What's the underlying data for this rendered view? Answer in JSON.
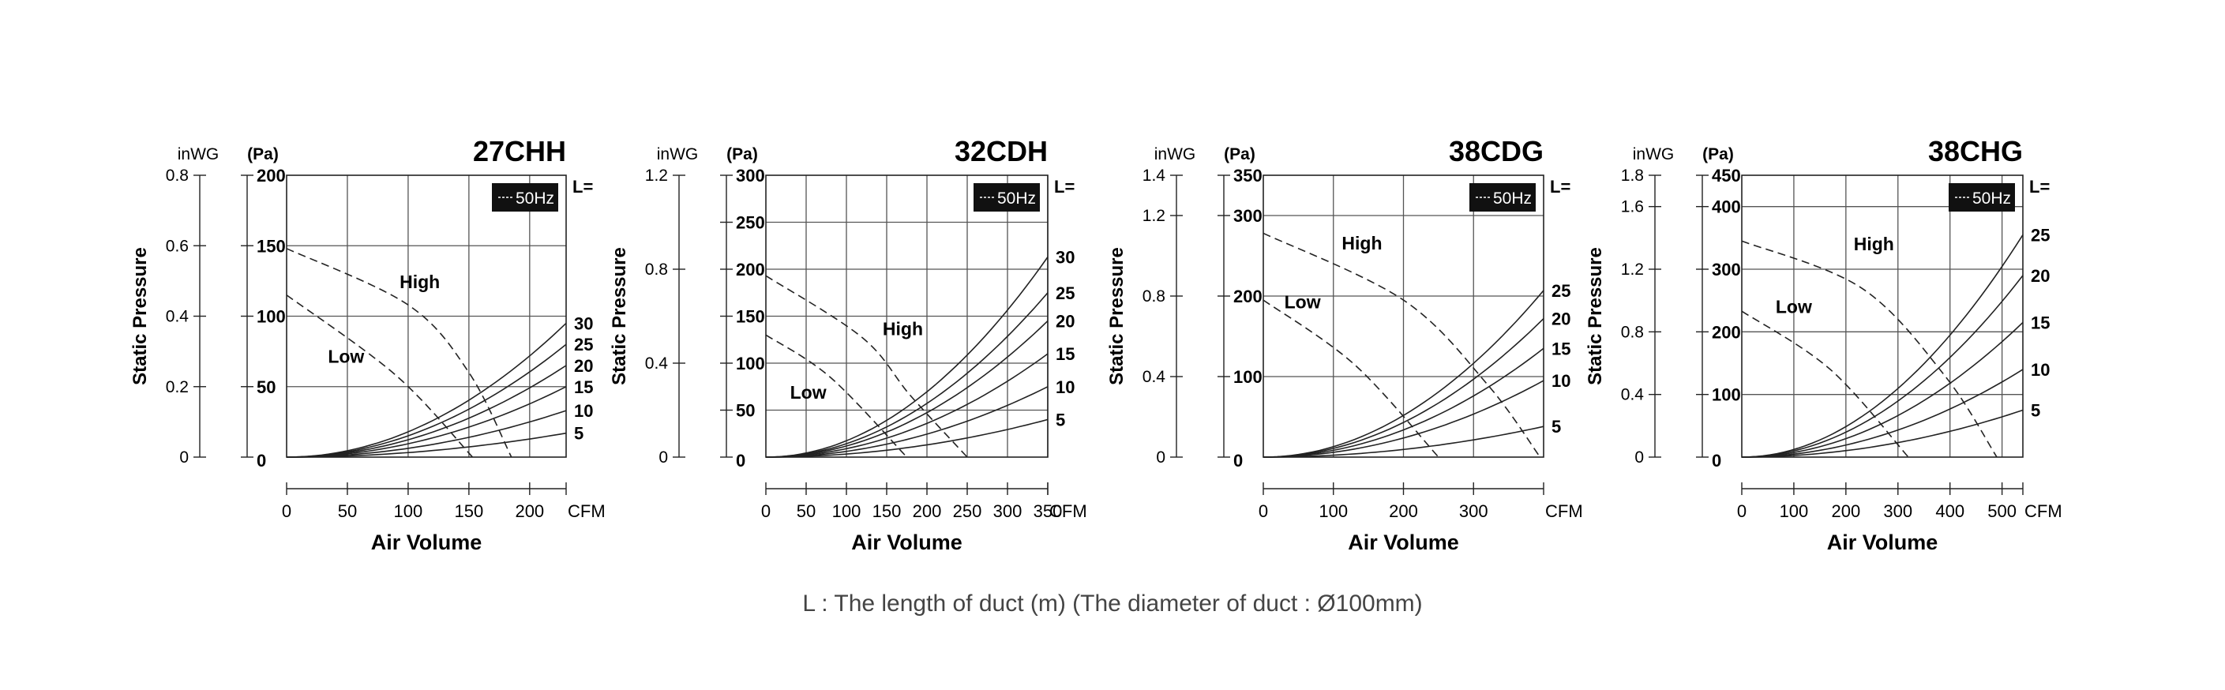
{
  "footnote": "L : The length of duct (m) (The diameter of duct : Ø100mm)",
  "chart_data": [
    {
      "type": "line",
      "title": "27CHH",
      "legend": "50Hz",
      "xlabel": "Air Volume",
      "x_unit": "CFM",
      "ylabel": "Static Pressure",
      "y_unit_in": "inWG",
      "y_unit_pa": "(Pa)",
      "l_label": "L=",
      "xlim": [
        0,
        230
      ],
      "xticks": [
        0,
        50,
        100,
        150,
        200
      ],
      "ylim": [
        0,
        200
      ],
      "yticks_pa": [
        0,
        50,
        100,
        150,
        200
      ],
      "yticks_in": [
        {
          "label": "0.8",
          "pa": 200
        },
        {
          "label": "0.6",
          "pa": 150
        },
        {
          "label": "0.4",
          "pa": 100
        },
        {
          "label": "0.2",
          "pa": 50
        },
        {
          "label": "0",
          "pa": 0
        }
      ],
      "fan_curves": [
        {
          "name": "High",
          "points": [
            [
              0,
              148
            ],
            [
              100,
              108
            ],
            [
              150,
              60
            ],
            [
              185,
              0
            ]
          ],
          "label_at": [
            93,
            120
          ]
        },
        {
          "name": "Low",
          "points": [
            [
              0,
              115
            ],
            [
              90,
              58
            ],
            [
              153,
              0
            ]
          ],
          "label_at": [
            34,
            67
          ]
        }
      ],
      "duct_curves": [
        {
          "name": "30",
          "endpoint": [
            230,
            95
          ]
        },
        {
          "name": "25",
          "endpoint": [
            230,
            80
          ]
        },
        {
          "name": "20",
          "endpoint": [
            230,
            65
          ]
        },
        {
          "name": "15",
          "endpoint": [
            230,
            50
          ]
        },
        {
          "name": "10",
          "endpoint": [
            230,
            33
          ]
        },
        {
          "name": "5",
          "endpoint": [
            230,
            17
          ]
        }
      ]
    },
    {
      "type": "line",
      "title": "32CDH",
      "legend": "50Hz",
      "xlabel": "Air Volume",
      "x_unit": "CFM",
      "ylabel": "Static Pressure",
      "y_unit_in": "inWG",
      "y_unit_pa": "(Pa)",
      "l_label": "L=",
      "xlim": [
        0,
        350
      ],
      "xticks": [
        0,
        50,
        100,
        150,
        200,
        250,
        300,
        350
      ],
      "ylim": [
        0,
        300
      ],
      "yticks_pa": [
        0,
        50,
        100,
        150,
        200,
        250,
        300
      ],
      "yticks_in": [
        {
          "label": "1.2",
          "pa": 300
        },
        {
          "label": "0.8",
          "pa": 200
        },
        {
          "label": "0.4",
          "pa": 100
        },
        {
          "label": "0",
          "pa": 0
        }
      ],
      "fan_curves": [
        {
          "name": "High",
          "points": [
            [
              0,
              193
            ],
            [
              120,
              127
            ],
            [
              180,
              65
            ],
            [
              250,
              0
            ]
          ],
          "label_at": [
            145,
            130
          ]
        },
        {
          "name": "Low",
          "points": [
            [
              0,
              130
            ],
            [
              80,
              85
            ],
            [
              175,
              0
            ]
          ],
          "label_at": [
            30,
            62
          ]
        }
      ],
      "duct_curves": [
        {
          "name": "30",
          "endpoint": [
            350,
            213
          ]
        },
        {
          "name": "25",
          "endpoint": [
            350,
            175
          ]
        },
        {
          "name": "20",
          "endpoint": [
            350,
            145
          ]
        },
        {
          "name": "15",
          "endpoint": [
            350,
            110
          ]
        },
        {
          "name": "10",
          "endpoint": [
            350,
            75
          ]
        },
        {
          "name": "5",
          "endpoint": [
            350,
            40
          ]
        }
      ]
    },
    {
      "type": "line",
      "title": "38CDG",
      "legend": "50Hz",
      "xlabel": "Air Volume",
      "x_unit": "CFM",
      "ylabel": "Static Pressure",
      "y_unit_in": "inWG",
      "y_unit_pa": "(Pa)",
      "l_label": "L=",
      "xlim": [
        0,
        400
      ],
      "xticks": [
        0,
        100,
        200,
        300
      ],
      "ylim": [
        0,
        350
      ],
      "yticks_pa": [
        0,
        100,
        200,
        300,
        350
      ],
      "yticks_in": [
        {
          "label": "1.4",
          "pa": 350
        },
        {
          "label": "1.2",
          "pa": 300
        },
        {
          "label": "0.8",
          "pa": 200
        },
        {
          "label": "0.4",
          "pa": 100
        },
        {
          "label": "0",
          "pa": 0
        }
      ],
      "fan_curves": [
        {
          "name": "High",
          "points": [
            [
              0,
              278
            ],
            [
              200,
              195
            ],
            [
              320,
              90
            ],
            [
              395,
              0
            ]
          ],
          "label_at": [
            112,
            258
          ]
        },
        {
          "name": "Low",
          "points": [
            [
              0,
              195
            ],
            [
              130,
              115
            ],
            [
              250,
              0
            ]
          ],
          "label_at": [
            30,
            185
          ]
        }
      ],
      "duct_curves": [
        {
          "name": "25",
          "endpoint": [
            400,
            207
          ]
        },
        {
          "name": "20",
          "endpoint": [
            400,
            172
          ]
        },
        {
          "name": "15",
          "endpoint": [
            400,
            135
          ]
        },
        {
          "name": "10",
          "endpoint": [
            400,
            95
          ]
        },
        {
          "name": "5",
          "endpoint": [
            400,
            38
          ]
        }
      ]
    },
    {
      "type": "line",
      "title": "38CHG",
      "legend": "50Hz",
      "xlabel": "Air Volume",
      "x_unit": "CFM",
      "ylabel": "Static Pressure",
      "y_unit_in": "inWG",
      "y_unit_pa": "(Pa)",
      "l_label": "L=",
      "xlim": [
        0,
        540
      ],
      "xticks": [
        0,
        100,
        200,
        300,
        400,
        500
      ],
      "ylim": [
        0,
        450
      ],
      "yticks_pa": [
        0,
        100,
        200,
        300,
        400,
        450
      ],
      "yticks_in": [
        {
          "label": "1.8",
          "pa": 450
        },
        {
          "label": "1.6",
          "pa": 400
        },
        {
          "label": "1.2",
          "pa": 300
        },
        {
          "label": "0.8",
          "pa": 200
        },
        {
          "label": "0.4",
          "pa": 100
        },
        {
          "label": "0",
          "pa": 0
        }
      ],
      "fan_curves": [
        {
          "name": "High",
          "points": [
            [
              0,
              345
            ],
            [
              230,
              270
            ],
            [
              390,
              130
            ],
            [
              490,
              0
            ]
          ],
          "label_at": [
            215,
            330
          ]
        },
        {
          "name": "Low",
          "points": [
            [
              0,
              233
            ],
            [
              170,
              140
            ],
            [
              320,
              0
            ]
          ],
          "label_at": [
            65,
            230
          ]
        }
      ],
      "duct_curves": [
        {
          "name": "25",
          "endpoint": [
            540,
            355
          ]
        },
        {
          "name": "20",
          "endpoint": [
            540,
            290
          ]
        },
        {
          "name": "15",
          "endpoint": [
            540,
            215
          ]
        },
        {
          "name": "10",
          "endpoint": [
            540,
            140
          ]
        },
        {
          "name": "5",
          "endpoint": [
            540,
            75
          ]
        }
      ]
    }
  ]
}
